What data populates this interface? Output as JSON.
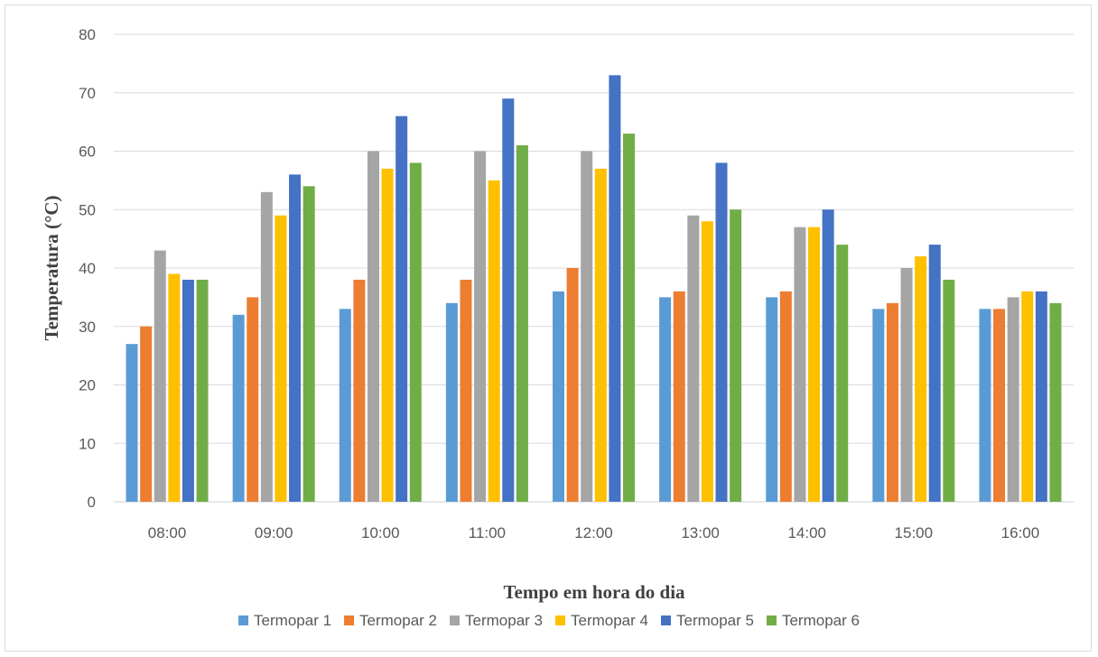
{
  "chart_data": {
    "type": "bar",
    "title": "",
    "xlabel": "Tempo em hora do dia",
    "ylabel": "Temperatura (°C)",
    "ylim": [
      0,
      80
    ],
    "yticks": [
      0,
      10,
      20,
      30,
      40,
      50,
      60,
      70,
      80
    ],
    "grid": true,
    "legend_position": "bottom",
    "categories": [
      "08:00",
      "09:00",
      "10:00",
      "11:00",
      "12:00",
      "13:00",
      "14:00",
      "15:00",
      "16:00"
    ],
    "series": [
      {
        "name": "Termopar 1",
        "color": "#5B9BD5",
        "values": [
          27,
          32,
          33,
          34,
          36,
          35,
          35,
          33,
          33
        ]
      },
      {
        "name": "Termopar 2",
        "color": "#ED7D31",
        "values": [
          30,
          35,
          38,
          38,
          40,
          36,
          36,
          34,
          33
        ]
      },
      {
        "name": "Termopar 3",
        "color": "#A5A5A5",
        "values": [
          43,
          53,
          60,
          60,
          60,
          49,
          47,
          40,
          35
        ]
      },
      {
        "name": "Termopar 4",
        "color": "#FFC000",
        "values": [
          39,
          49,
          57,
          55,
          57,
          48,
          47,
          42,
          36
        ]
      },
      {
        "name": "Termopar 5",
        "color": "#4472C4",
        "values": [
          38,
          56,
          66,
          69,
          73,
          58,
          50,
          44,
          36
        ]
      },
      {
        "name": "Termopar 6",
        "color": "#70AD47",
        "values": [
          38,
          54,
          58,
          61,
          63,
          50,
          44,
          38,
          34
        ]
      }
    ]
  }
}
